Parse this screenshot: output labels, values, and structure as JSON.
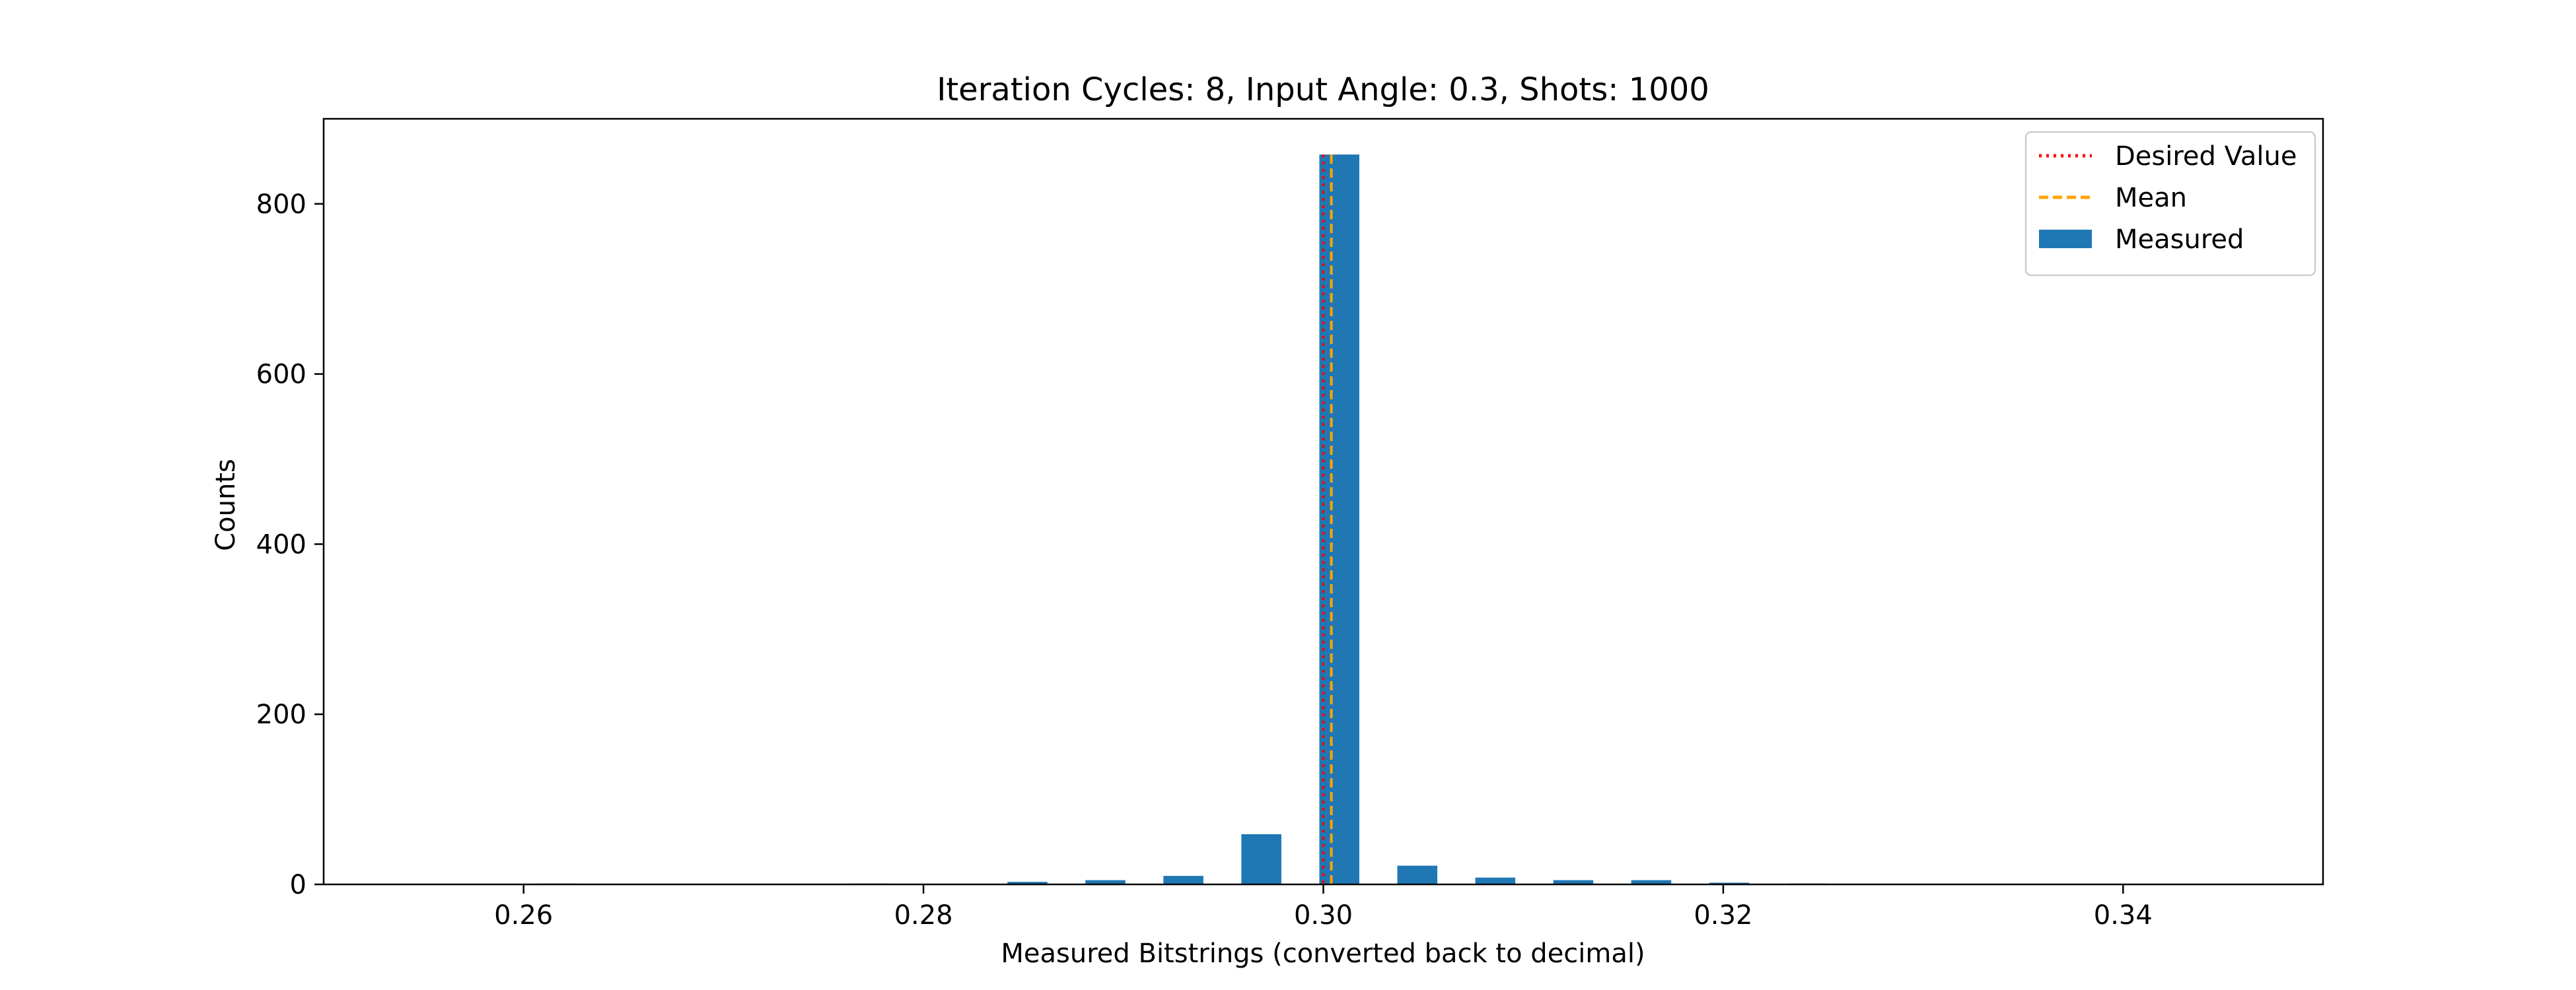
{
  "chart_data": {
    "type": "bar",
    "title": "Iteration Cycles: 8, Input Angle: 0.3, Shots: 1000",
    "xlabel": "Measured Bitstrings (converted back to decimal)",
    "ylabel": "Counts",
    "xlim": [
      0.25,
      0.35
    ],
    "ylim": [
      0,
      900
    ],
    "xticks": [
      0.26,
      0.28,
      0.3,
      0.32,
      0.34
    ],
    "xtick_labels": [
      "0.26",
      "0.28",
      "0.30",
      "0.32",
      "0.34"
    ],
    "yticks": [
      0,
      200,
      400,
      600,
      800
    ],
    "ytick_labels": [
      "0",
      "200",
      "400",
      "600",
      "800"
    ],
    "grid": false,
    "legend_position": "top-right",
    "series": [
      {
        "name": "Measured",
        "color": "#1f77b4",
        "bar_width": 0.002,
        "x": [
          0.2617,
          0.2773,
          0.2852,
          0.2891,
          0.293,
          0.2969,
          0.3008,
          0.3047,
          0.3086,
          0.3125,
          0.3164,
          0.3203,
          0.3242
        ],
        "values": [
          1,
          1,
          3,
          5,
          10,
          59,
          858,
          22,
          8,
          5,
          5,
          2,
          1
        ]
      }
    ],
    "reference_lines": [
      {
        "name": "Desired Value",
        "x": 0.3,
        "color": "#ff0000",
        "style": "dotted"
      },
      {
        "name": "Mean",
        "x": 0.3004,
        "color": "#ffa500",
        "style": "dashed"
      }
    ],
    "legend": {
      "items": [
        {
          "label": "Desired Value",
          "kind": "dotted-line",
          "color": "#ff0000"
        },
        {
          "label": "Mean",
          "kind": "dashed-line",
          "color": "#ffa500"
        },
        {
          "label": "Measured",
          "kind": "patch",
          "color": "#1f77b4"
        }
      ]
    }
  }
}
